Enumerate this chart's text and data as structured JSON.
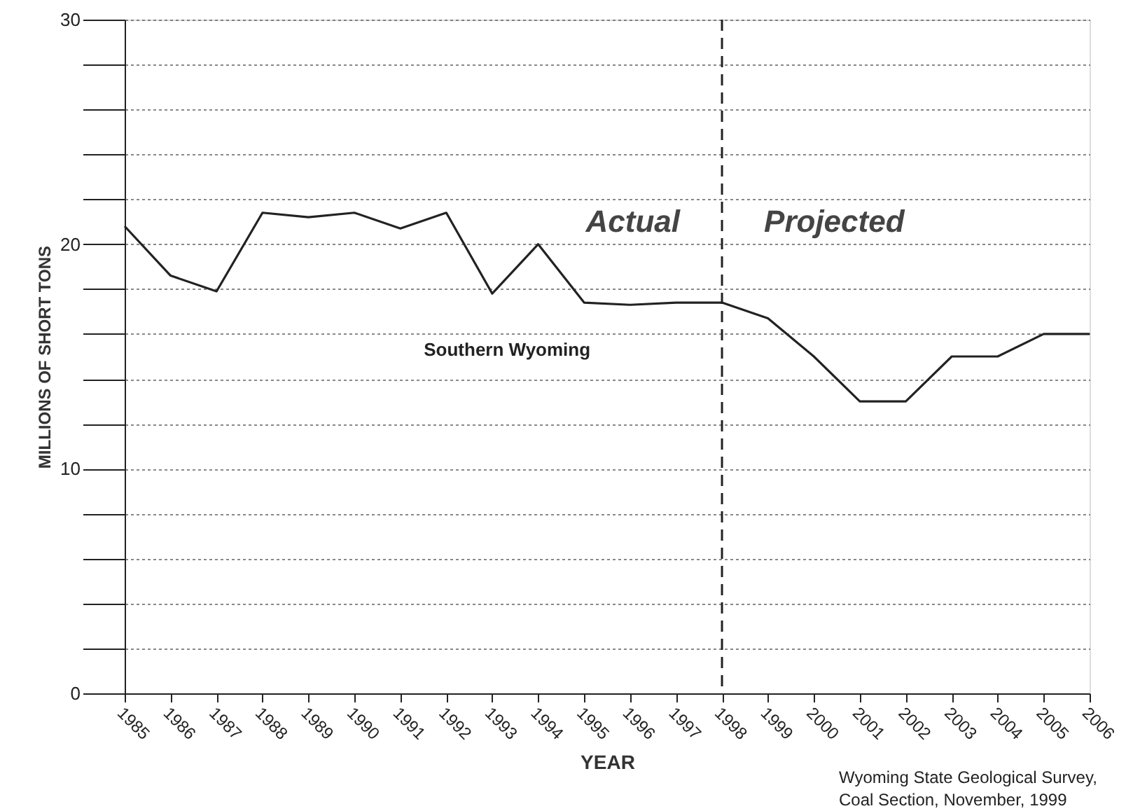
{
  "chart_data": {
    "type": "line",
    "xlabel": "YEAR",
    "ylabel": "MILLIONS OF SHORT TONS",
    "x": [
      1985,
      1986,
      1987,
      1988,
      1989,
      1990,
      1991,
      1992,
      1993,
      1994,
      1995,
      1996,
      1997,
      1998,
      1999,
      2000,
      2001,
      2002,
      2003,
      2004,
      2005,
      2006
    ],
    "series": [
      {
        "name": "Southern Wyoming",
        "color": "#222222",
        "values": [
          20.8,
          18.6,
          17.9,
          21.4,
          21.2,
          21.4,
          20.7,
          21.4,
          17.8,
          20.0,
          17.4,
          17.3,
          17.4,
          17.4,
          16.7,
          15.0,
          13.0,
          13.0,
          15.0,
          15.0,
          16.0,
          16.0
        ]
      }
    ],
    "xlim": [
      1985,
      2006
    ],
    "xticks": [
      1985,
      1986,
      1987,
      1988,
      1989,
      1990,
      1991,
      1992,
      1993,
      1994,
      1995,
      1996,
      1997,
      1998,
      1999,
      2000,
      2001,
      2002,
      2003,
      2004,
      2005,
      2006
    ],
    "ylim": [
      0,
      30
    ],
    "yticks": [
      0,
      {
        "value": 2,
        "label": null
      },
      {
        "value": 4,
        "label": null
      },
      {
        "value": 6,
        "label": null
      },
      {
        "value": 8,
        "label": null
      },
      10,
      {
        "value": 12,
        "label": null
      },
      {
        "value": 14,
        "label": null
      },
      {
        "value": 16,
        "label": null
      },
      {
        "value": 18,
        "label": null
      },
      20,
      {
        "value": 22,
        "label": null
      },
      {
        "value": 24,
        "label": null
      },
      {
        "value": 26,
        "label": null
      },
      {
        "value": 28,
        "label": null
      },
      30
    ],
    "grid": "y",
    "legend": false,
    "marker": "none",
    "line_style": "solid",
    "ref_lines": [
      {
        "axis": "x",
        "value": 1998,
        "line_style": "dashed",
        "color": "#222222"
      }
    ],
    "annotations": [
      "Actual",
      "Projected",
      "Wyoming State Geological Survey,",
      "Coal Section, November, 1999"
    ]
  }
}
